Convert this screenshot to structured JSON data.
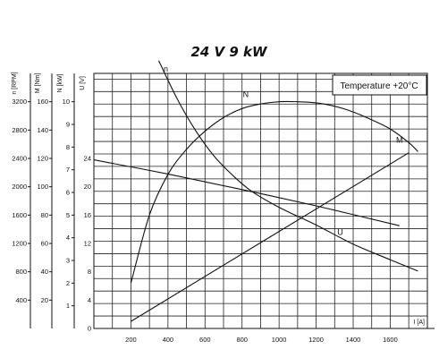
{
  "chart_data": {
    "type": "line",
    "title": "24 V 9 kW",
    "annotation": "Temperature +20°C",
    "xlabel": "I [A]",
    "x_ticks": [
      "200",
      "400",
      "600",
      "800",
      "1000",
      "1200",
      "1400",
      "1600"
    ],
    "xlim": [
      0,
      1750
    ],
    "y_axes": [
      {
        "key": "n",
        "label": "n [RPM]",
        "ticks": [
          "400",
          "800",
          "1200",
          "1600",
          "2000",
          "2400",
          "2800",
          "3200"
        ],
        "range": [
          0,
          3600
        ]
      },
      {
        "key": "M",
        "label": "M [Nm]",
        "ticks": [
          "20",
          "40",
          "60",
          "80",
          "100",
          "120",
          "140",
          "160"
        ],
        "range": [
          0,
          180
        ]
      },
      {
        "key": "N",
        "label": "N [kW]",
        "ticks": [
          "1",
          "2",
          "3",
          "4",
          "5",
          "6",
          "7",
          "8",
          "9",
          "10"
        ],
        "range": [
          0,
          11.25
        ]
      },
      {
        "key": "U",
        "label": "U [V]",
        "ticks": [
          "0",
          "4",
          "8",
          "12",
          "16",
          "20",
          "24"
        ],
        "range": [
          0,
          36
        ]
      }
    ],
    "series": [
      {
        "name": "n",
        "axis": "n",
        "x": [
          350,
          450,
          550,
          650,
          750,
          850,
          1000,
          1200,
          1400,
          1600,
          1750
        ],
        "y": [
          3780,
          3240,
          2790,
          2430,
          2160,
          1940,
          1710,
          1460,
          1190,
          970,
          810
        ]
      },
      {
        "name": "N",
        "axis": "N",
        "x": [
          200,
          300,
          400,
          500,
          600,
          700,
          800,
          900,
          1000,
          1100,
          1200,
          1300,
          1400,
          1500,
          1600,
          1700,
          1750
        ],
        "y": [
          2.0,
          5.0,
          6.8,
          7.9,
          8.7,
          9.3,
          9.7,
          9.9,
          10.0,
          10.0,
          9.95,
          9.8,
          9.55,
          9.2,
          8.8,
          8.2,
          7.8
        ]
      },
      {
        "name": "M",
        "axis": "M",
        "x": [
          200,
          1700
        ],
        "y": [
          5,
          124
        ]
      },
      {
        "name": "U",
        "axis": "U",
        "x": [
          0,
          400,
          800,
          1200,
          1650
        ],
        "y": [
          23.8,
          21.8,
          19.6,
          17.3,
          14.5
        ]
      }
    ],
    "grid": true,
    "legend": "none"
  }
}
